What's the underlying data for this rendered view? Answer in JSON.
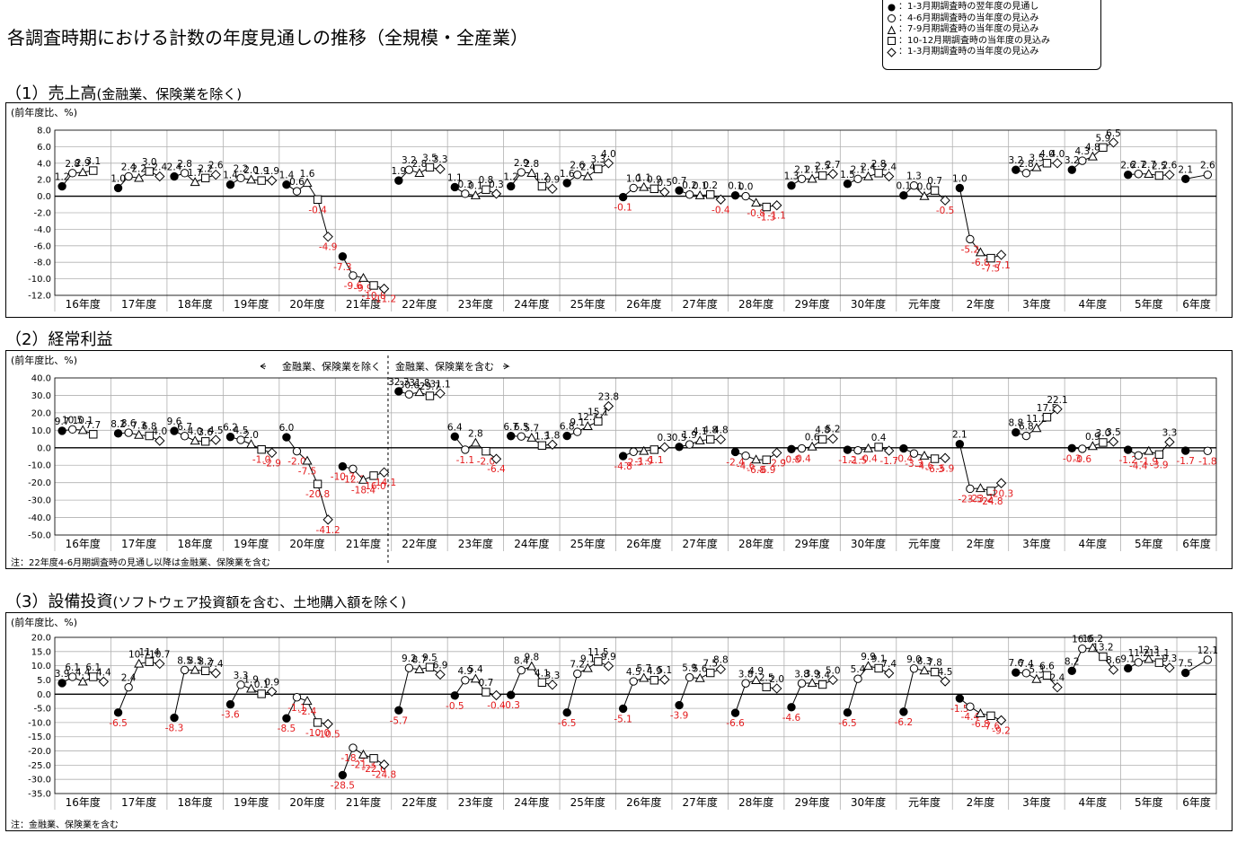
{
  "title": "各調査時期における計数の年度見通しの推移（全規模・全産業）",
  "legend": [
    {
      "symbol": "filled-circle",
      "label": "：1-3月期調査時の翌年度の見通し"
    },
    {
      "symbol": "circle",
      "label": "：4-6月期調査時の当年度の見込み"
    },
    {
      "symbol": "triangle",
      "label": "：7-9月期調査時の当年度の見込み"
    },
    {
      "symbol": "square",
      "label": "：10-12月期調査時の当年度の見込み"
    },
    {
      "symbol": "diamond",
      "label": "：1-3月期調査時の当年度の見込み"
    }
  ],
  "colors": {
    "negative_label": "#e31a1c",
    "positive_label": "#000000",
    "grid": "#b0b0b0"
  },
  "years": [
    "16年度",
    "17年度",
    "18年度",
    "19年度",
    "20年度",
    "21年度",
    "22年度",
    "23年度",
    "24年度",
    "25年度",
    "26年度",
    "27年度",
    "28年度",
    "29年度",
    "30年度",
    "元年度",
    "2年度",
    "3年度",
    "4年度",
    "5年度",
    "6年度"
  ],
  "chart_data": [
    {
      "type": "line",
      "title": "（1）売上高",
      "subtitle": "(金融業、保険業を除く)",
      "ylabel": "(前年度比、%)",
      "ylim": [
        -12,
        8
      ],
      "yticks": [
        "8.0",
        "6.0",
        "4.0",
        "2.0",
        "0.0",
        "-2.0",
        "-4.0",
        "-6.0",
        "-8.0",
        "-10.0",
        "-12.0"
      ],
      "series": [
        [
          1.2,
          2.8,
          2.9,
          3.1
        ],
        [
          1.0,
          2.4,
          2.2,
          3.0,
          2.4
        ],
        [
          2.4,
          2.8,
          1.7,
          2.2,
          2.6
        ],
        [
          1.4,
          2.2,
          2.0,
          1.9,
          1.9
        ],
        [
          1.4,
          0.6,
          1.6,
          -0.4,
          -4.9
        ],
        [
          -7.3,
          -9.6,
          -9.9,
          -10.8,
          -11.2
        ],
        [
          1.9,
          3.2,
          2.8,
          3.5,
          3.3
        ],
        [
          1.1,
          0.3,
          0.1,
          0.8,
          0.3
        ],
        [
          1.2,
          2.9,
          2.8,
          1.2,
          0.9
        ],
        [
          1.6,
          2.6,
          2.4,
          3.3,
          4.0
        ],
        [
          -0.1,
          1.0,
          1.1,
          0.9,
          0.5
        ],
        [
          0.7,
          0.2,
          0.1,
          0.2,
          -0.4
        ],
        [
          0.1,
          0.0,
          -0.8,
          -1.3,
          -1.1
        ],
        [
          1.3,
          2.1,
          2.1,
          2.5,
          2.7
        ],
        [
          1.5,
          2.1,
          2.4,
          2.8,
          2.4
        ],
        [
          0.1,
          1.3,
          0.0,
          0.7,
          -0.5
        ],
        [
          1.0,
          -5.2,
          -6.8,
          -7.5,
          -7.1
        ],
        [
          3.2,
          2.8,
          3.5,
          4.0,
          4.0
        ],
        [
          3.2,
          4.3,
          4.8,
          5.9,
          6.5
        ],
        [
          2.6,
          2.7,
          2.7,
          2.5,
          2.6
        ],
        [
          2.1,
          2.6
        ]
      ],
      "note": ""
    },
    {
      "type": "line",
      "title": "（2）経常利益",
      "subtitle": "",
      "ylabel": "(前年度比、%)",
      "ylim": [
        -50,
        40
      ],
      "yticks": [
        "40.0",
        "30.0",
        "20.0",
        "10.0",
        "0.0",
        "-10.0",
        "-20.0",
        "-30.0",
        "-40.0",
        "-50.0"
      ],
      "series": [
        [
          9.7,
          10.5,
          10.1,
          7.7
        ],
        [
          8.2,
          8.6,
          7.3,
          6.8,
          4.0
        ],
        [
          9.6,
          6.7,
          4.0,
          3.6,
          4.5
        ],
        [
          6.2,
          4.5,
          2.0,
          -1.0,
          -2.9
        ],
        [
          6.0,
          -2.0,
          -7.5,
          -20.8,
          -41.2
        ],
        [
          -10.7,
          -12.1,
          -18.4,
          -16.0,
          -14.1
        ],
        [
          32.3,
          30.6,
          31.8,
          29.7,
          31.1
        ],
        [
          6.4,
          -1.1,
          2.8,
          -2.0,
          -6.4
        ],
        [
          6.7,
          6.5,
          5.7,
          1.3,
          1.8
        ],
        [
          6.8,
          9.1,
          12.3,
          15.1,
          23.8
        ],
        [
          -4.8,
          -2.3,
          -1.9,
          -1.1,
          0.3
        ],
        [
          0.5,
          1.9,
          4.1,
          4.8,
          4.8
        ],
        [
          -2.4,
          -4.6,
          -6.8,
          -6.9,
          -2.9
        ],
        [
          -0.8,
          -0.4,
          0.6,
          4.8,
          5.2
        ],
        [
          -1.2,
          -1.5,
          -0.4,
          0.4,
          -1.7
        ],
        [
          -0.4,
          -3.3,
          -4.6,
          -6.3,
          -5.9
        ],
        [
          2.1,
          -23.5,
          -23.2,
          -24.8,
          -20.3
        ],
        [
          8.8,
          6.8,
          11.2,
          17.5,
          22.1
        ],
        [
          -0.3,
          -0.6,
          0.9,
          3.0,
          3.5
        ],
        [
          -1.2,
          -4.4,
          -1.9,
          -3.9,
          3.3
        ],
        [
          -1.7,
          -1.8
        ]
      ],
      "annotation_left": "金融業、保険業を除く",
      "annotation_right": "金融業、保険業を含む",
      "note": "注：22年度4-6月期調査時の見通し以降は金融業、保険業を含む"
    },
    {
      "type": "line",
      "title": "（3）設備投資",
      "subtitle": "(ソフトウェア投資額を含む、土地購入額を除く)",
      "ylabel": "(前年度比、%)",
      "ylim": [
        -35,
        20
      ],
      "yticks": [
        "20.0",
        "15.0",
        "10.0",
        "5.0",
        "0.0",
        "-5.0",
        "-10.0",
        "-15.0",
        "-20.0",
        "-25.0",
        "-30.0",
        "-35.0"
      ],
      "series": [
        [
          3.9,
          6.1,
          4.4,
          6.1,
          4.4
        ],
        [
          -6.5,
          2.4,
          10.7,
          11.4,
          10.7
        ],
        [
          -8.3,
          8.5,
          8.5,
          8.2,
          7.4
        ],
        [
          -3.6,
          3.3,
          1.9,
          0.1,
          0.9
        ],
        [
          -8.5,
          -1.1,
          -2.4,
          -10.0,
          -10.5
        ],
        [
          -28.5,
          -18.9,
          -21.3,
          -22.6,
          -24.8
        ],
        [
          -5.7,
          9.2,
          8.7,
          9.5,
          6.9
        ],
        [
          -0.5,
          4.9,
          5.4,
          0.7,
          -0.4
        ],
        [
          -0.3,
          8.4,
          9.8,
          4.1,
          3.3
        ],
        [
          -6.5,
          7.2,
          9.1,
          11.5,
          9.9
        ],
        [
          -5.1,
          4.5,
          5.7,
          4.9,
          5.1
        ],
        [
          -3.9,
          5.9,
          5.6,
          7.5,
          8.8
        ],
        [
          -6.6,
          3.8,
          4.9,
          2.5,
          2.0
        ],
        [
          -4.6,
          3.8,
          3.9,
          3.4,
          5.0
        ],
        [
          -6.5,
          5.4,
          9.9,
          9.1,
          7.4
        ],
        [
          -6.2,
          9.0,
          8.3,
          7.8,
          4.5
        ],
        [
          -1.5,
          -4.4,
          -6.8,
          -7.6,
          -9.2
        ],
        [
          7.6,
          7.4,
          5.3,
          6.6,
          2.4
        ],
        [
          8.2,
          16.0,
          16.2,
          13.2,
          8.6
        ],
        [
          9.1,
          11.2,
          12.3,
          11.1,
          9.3
        ],
        [
          7.5,
          12.1
        ]
      ],
      "note": "注：金融業、保険業を含む"
    }
  ]
}
